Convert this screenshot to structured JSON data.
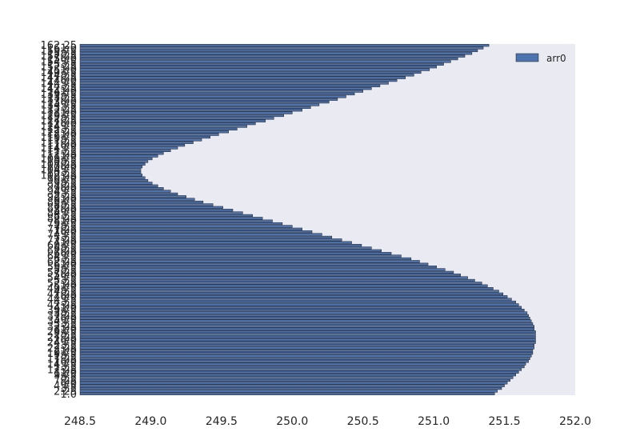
{
  "chart_data": {
    "type": "bar",
    "orientation": "horizontal",
    "title": "",
    "xlabel": "",
    "ylabel": "",
    "xlim": [
      248.5,
      252.0
    ],
    "xticks": [
      "248.5",
      "249.0",
      "249.5",
      "250.0",
      "250.5",
      "251.0",
      "251.5",
      "252.0"
    ],
    "legend": {
      "placement": "top-right",
      "entries": [
        "arr0"
      ]
    },
    "grid": false,
    "colors": {
      "bar": "#4c72b0",
      "edge": "#1a1a1a",
      "background": "#eaeaf2"
    },
    "y_start": 1.0,
    "y_step": 1.25,
    "series": [
      {
        "name": "arr0",
        "values": [
          251.43,
          251.45,
          251.48,
          251.5,
          251.52,
          251.54,
          251.56,
          251.58,
          251.6,
          251.62,
          251.64,
          251.65,
          251.67,
          251.68,
          251.69,
          251.7,
          251.7,
          251.71,
          251.71,
          251.72,
          251.72,
          251.72,
          251.72,
          251.72,
          251.71,
          251.71,
          251.7,
          251.69,
          251.68,
          251.67,
          251.66,
          251.64,
          251.62,
          251.6,
          251.58,
          251.55,
          251.52,
          251.49,
          251.46,
          251.42,
          251.38,
          251.34,
          251.29,
          251.24,
          251.19,
          251.14,
          251.08,
          251.02,
          250.96,
          250.9,
          250.84,
          250.77,
          250.7,
          250.63,
          250.56,
          250.49,
          250.42,
          250.35,
          250.28,
          250.21,
          250.14,
          250.07,
          250.0,
          249.93,
          249.86,
          249.79,
          249.72,
          249.65,
          249.58,
          249.51,
          249.44,
          249.37,
          249.31,
          249.25,
          249.19,
          249.14,
          249.09,
          249.05,
          249.01,
          248.98,
          248.96,
          248.94,
          248.93,
          248.93,
          248.94,
          248.96,
          248.98,
          249.01,
          249.05,
          249.09,
          249.14,
          249.19,
          249.24,
          249.3,
          249.36,
          249.42,
          249.48,
          249.55,
          249.61,
          249.68,
          249.74,
          249.81,
          249.87,
          249.94,
          250.0,
          250.07,
          250.13,
          250.19,
          250.26,
          250.32,
          250.38,
          250.44,
          250.5,
          250.56,
          250.62,
          250.68,
          250.74,
          250.8,
          250.86,
          250.91,
          250.97,
          251.02,
          251.07,
          251.12,
          251.17,
          251.22,
          251.27,
          251.31,
          251.35,
          251.39
        ]
      }
    ]
  }
}
